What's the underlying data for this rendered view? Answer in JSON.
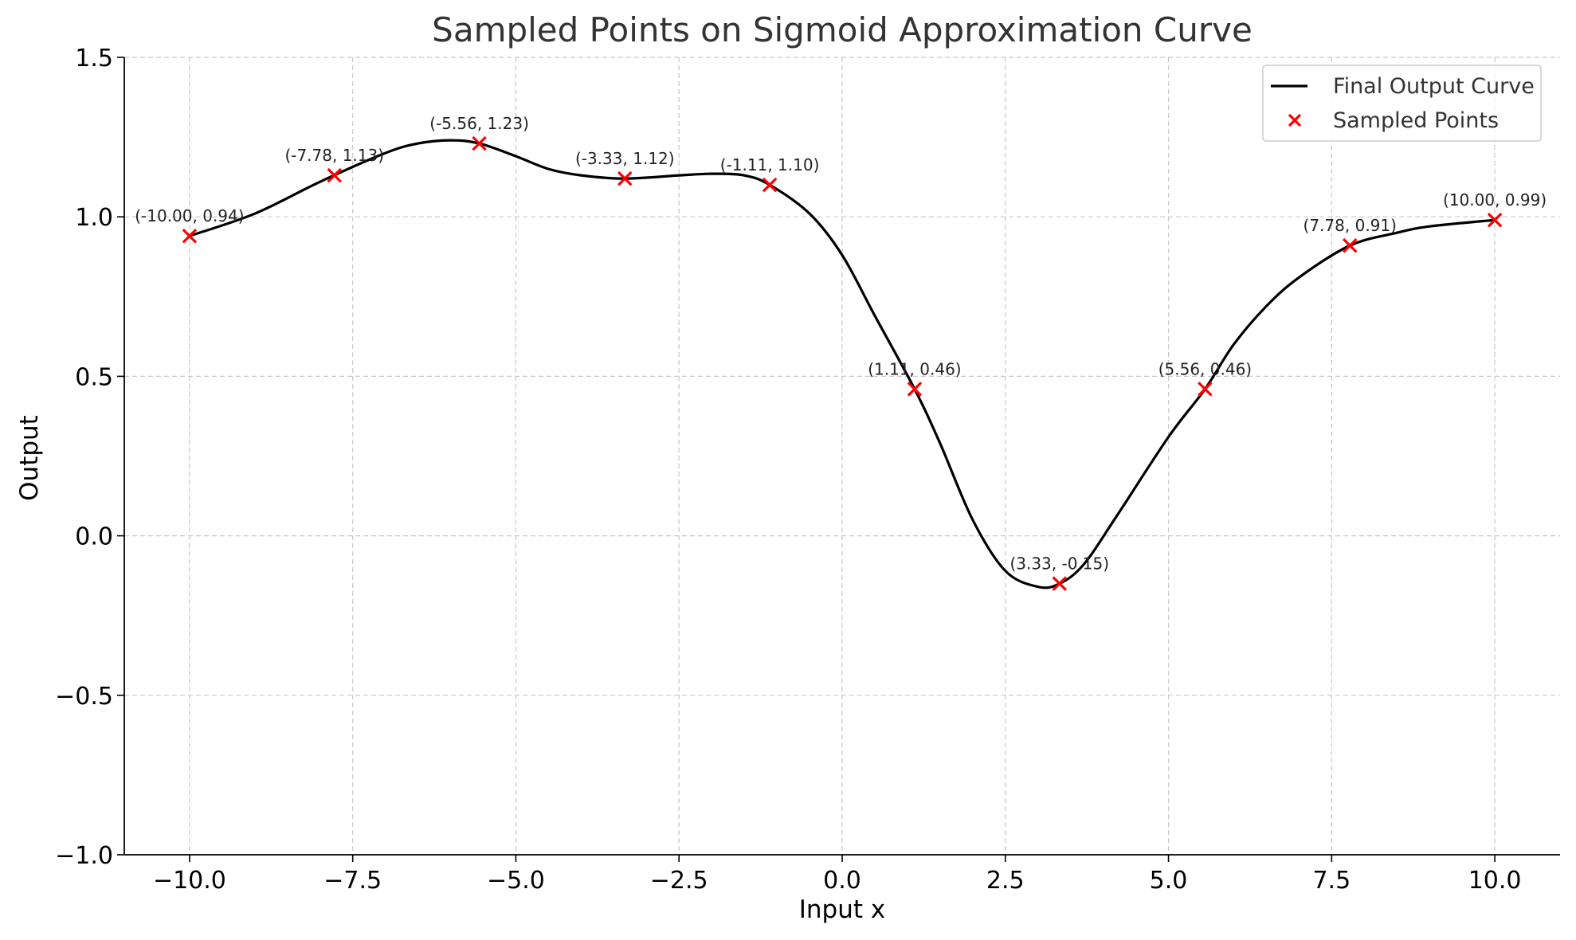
{
  "chart_data": {
    "type": "line",
    "title": "Sampled Points on Sigmoid Approximation Curve",
    "xlabel": "Input x",
    "ylabel": "Output",
    "xlim": [
      -11,
      11
    ],
    "ylim": [
      -1.0,
      1.5
    ],
    "grid": true,
    "legend_position": "top-right",
    "x_ticks": [
      -10.0,
      -7.5,
      -5.0,
      -2.5,
      0.0,
      2.5,
      5.0,
      7.5,
      10.0
    ],
    "x_tick_labels": [
      "−10.0",
      "−7.5",
      "−5.0",
      "−2.5",
      "0.0",
      "2.5",
      "5.0",
      "7.5",
      "10.0"
    ],
    "y_ticks": [
      -1.0,
      -0.5,
      0.0,
      0.5,
      1.0,
      1.5
    ],
    "y_tick_labels": [
      "−1.0",
      "−0.5",
      "0.0",
      "0.5",
      "1.0",
      "1.5"
    ],
    "series": [
      {
        "name": "Final Output Curve",
        "kind": "line",
        "color": "#000000",
        "x": [
          -10.0,
          -9.0,
          -8.0,
          -7.0,
          -6.5,
          -6.0,
          -5.56,
          -5.0,
          -4.5,
          -4.0,
          -3.33,
          -2.5,
          -2.0,
          -1.5,
          -1.11,
          -0.5,
          0.0,
          0.5,
          1.11,
          1.5,
          2.0,
          2.5,
          3.0,
          3.33,
          3.7,
          4.2,
          5.0,
          5.56,
          6.0,
          6.5,
          7.0,
          7.78,
          8.5,
          9.0,
          10.0
        ],
        "y": [
          0.94,
          1.01,
          1.11,
          1.2,
          1.23,
          1.24,
          1.23,
          1.19,
          1.15,
          1.13,
          1.12,
          1.13,
          1.135,
          1.13,
          1.1,
          1.01,
          0.88,
          0.69,
          0.46,
          0.29,
          0.05,
          -0.11,
          -0.16,
          -0.15,
          -0.09,
          0.06,
          0.31,
          0.46,
          0.6,
          0.72,
          0.81,
          0.91,
          0.95,
          0.97,
          0.99
        ]
      },
      {
        "name": "Sampled Points",
        "kind": "scatter",
        "marker": "x",
        "color": "#ff0000",
        "x": [
          -10.0,
          -7.78,
          -5.56,
          -3.33,
          -1.11,
          1.11,
          3.33,
          5.56,
          7.78,
          10.0
        ],
        "y": [
          0.94,
          1.13,
          1.23,
          1.12,
          1.1,
          0.46,
          -0.15,
          0.46,
          0.91,
          0.99
        ]
      }
    ],
    "annotations": [
      "(-10.00, 0.94)",
      "(-7.78, 1.13)",
      "(-5.56, 1.23)",
      "(-3.33, 1.12)",
      "(-1.11, 1.10)",
      "(1.11, 0.46)",
      "(3.33, -0.15)",
      "(5.56, 0.46)",
      "(7.78, 0.91)",
      "(10.00, 0.99)"
    ]
  }
}
